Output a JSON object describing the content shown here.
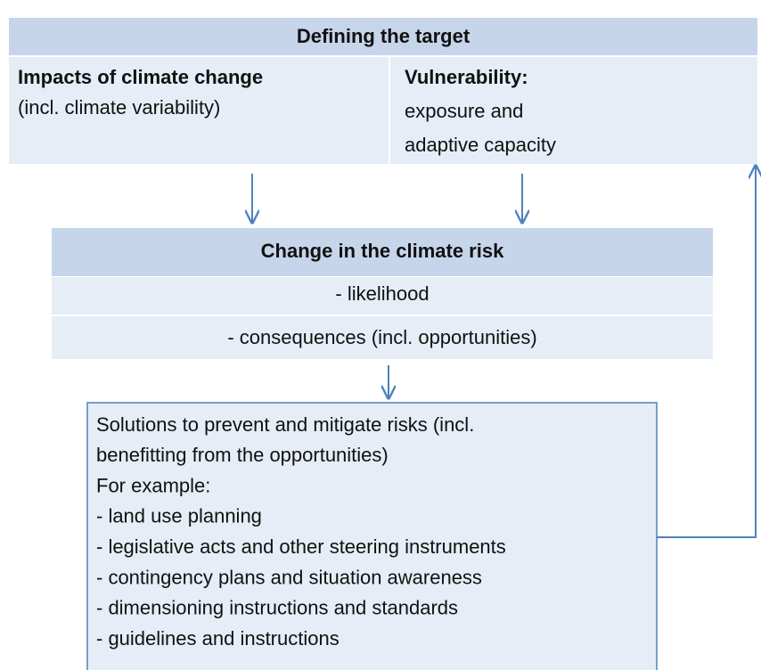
{
  "top": {
    "title": "Defining the target",
    "left": {
      "title": "Impacts of climate change",
      "lines": [
        "(incl. climate variability)"
      ]
    },
    "right": {
      "title": "Vulnerability:",
      "lines": [
        "exposure and",
        "adaptive capacity"
      ]
    }
  },
  "middle": {
    "title": "Change in the climate risk",
    "rows": [
      "- likelihood",
      "- consequences (incl. opportunities)"
    ]
  },
  "bottom": {
    "lines": [
      "Solutions to prevent and mitigate risks (incl.",
      "benefitting from the opportunities)",
      "For example:",
      "- land use planning",
      "- legislative acts and other steering instruments",
      "- contingency plans and situation awareness",
      "- dimensioning instructions and standards",
      "- guidelines and instructions"
    ]
  }
}
